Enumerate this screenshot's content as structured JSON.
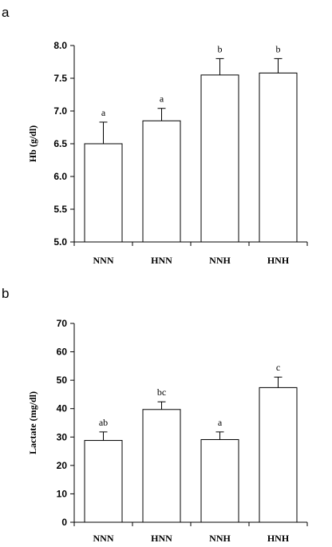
{
  "chart_data": [
    {
      "type": "bar",
      "panel": "a",
      "title": "",
      "xlabel": "",
      "ylabel": "Hb (g/dl)",
      "categories": [
        "NNN",
        "HNN",
        "NNH",
        "HNH"
      ],
      "values": [
        6.5,
        6.85,
        7.55,
        7.58
      ],
      "errors": [
        0.33,
        0.19,
        0.25,
        0.22
      ],
      "significance": [
        "a",
        "a",
        "b",
        "b"
      ],
      "ylim": [
        5.0,
        8.0
      ],
      "yticks": [
        "5.0",
        "5.5",
        "6.0",
        "6.5",
        "7.0",
        "7.5",
        "8.0"
      ],
      "grid": false,
      "legend": "none"
    },
    {
      "type": "bar",
      "panel": "b",
      "title": "",
      "xlabel": "",
      "ylabel": "Lactate (mg/dl)",
      "categories": [
        "NNN",
        "HNN",
        "NNH",
        "HNH"
      ],
      "values": [
        28.8,
        39.7,
        29.1,
        47.4
      ],
      "errors": [
        3.0,
        2.7,
        2.7,
        3.7
      ],
      "significance": [
        "ab",
        "bc",
        "a",
        "c"
      ],
      "ylim": [
        0,
        70
      ],
      "yticks": [
        "0",
        "10",
        "20",
        "30",
        "40",
        "50",
        "60",
        "70"
      ],
      "grid": false,
      "legend": "none"
    }
  ]
}
